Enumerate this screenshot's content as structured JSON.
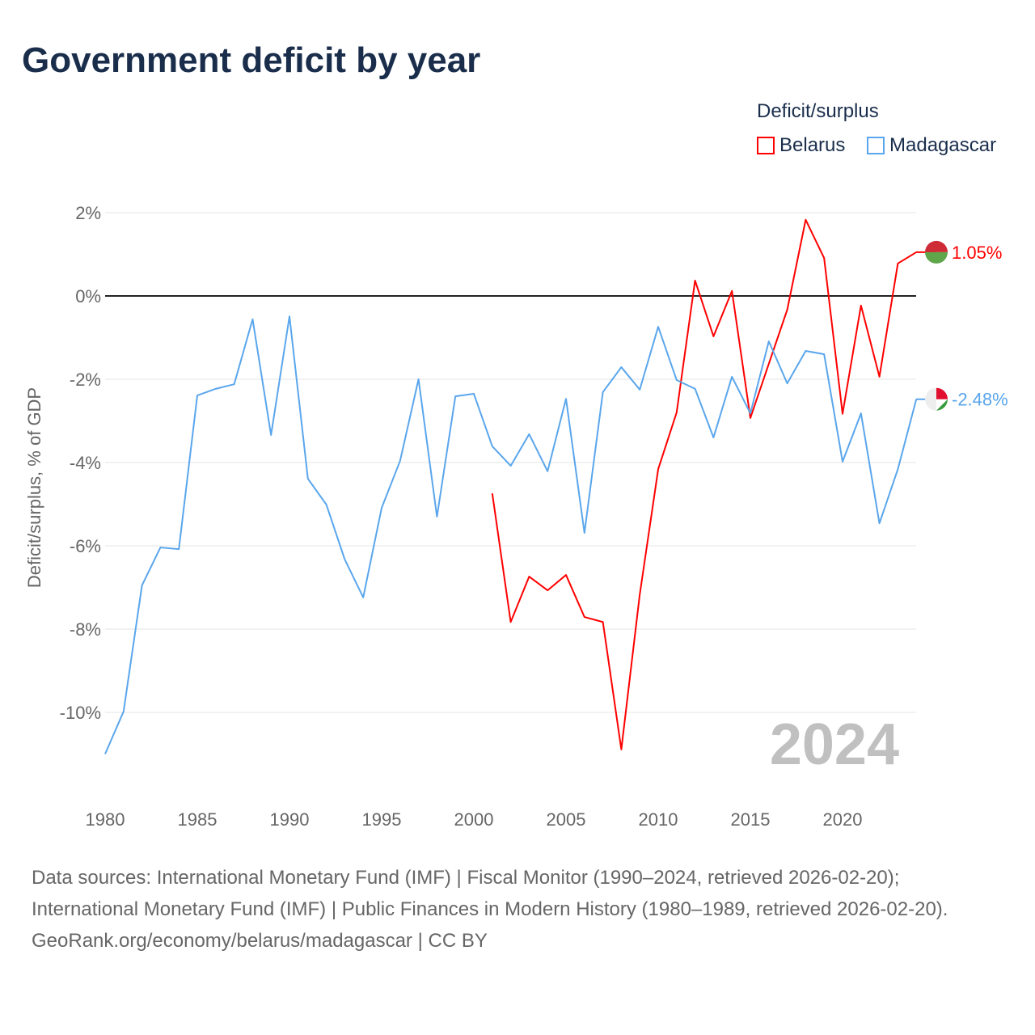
{
  "title": "Government deficit by year",
  "legend": {
    "title": "Deficit/surplus",
    "items": [
      {
        "label": "Belarus",
        "color": "#ff0000"
      },
      {
        "label": "Madagascar",
        "color": "#5aa6ec"
      }
    ]
  },
  "source": {
    "line1": "Data sources: International Monetary Fund (IMF) | Fiscal Monitor (1990–2024, retrieved 2026-02-20); International Monetary Fund (IMF) | Public Finances in Modern History (1980–1989, retrieved 2026-02-20).",
    "line2": "GeoRank.org/economy/belarus/madagascar | CC BY"
  },
  "chart_data": {
    "type": "line",
    "title": "Government deficit by year",
    "ylabel": "Deficit/surplus, % of GDP",
    "xlabel": "",
    "year_label": "2024",
    "xlim": [
      1980,
      2024
    ],
    "ylim": [
      -11.5,
      2.5
    ],
    "x_ticks": [
      1980,
      1985,
      1990,
      1995,
      2000,
      2005,
      2010,
      2015,
      2020
    ],
    "y_ticks": [
      2,
      0,
      -2,
      -4,
      -6,
      -8,
      -10
    ],
    "y_tick_labels": [
      "2%",
      "0%",
      "-2%",
      "-4%",
      "-6%",
      "-8%",
      "-10%"
    ],
    "grid": true,
    "legend_position": "top-right",
    "series": [
      {
        "name": "Belarus",
        "color": "#ff0000",
        "start_year": 2001,
        "end_label": "1.05%",
        "values": [
          -4.74,
          -7.83,
          -6.74,
          -7.07,
          -6.7,
          -7.71,
          -7.83,
          -10.89,
          -7.17,
          -4.16,
          -2.8,
          0.37,
          -0.97,
          0.12,
          -2.93,
          -1.63,
          -0.33,
          1.83,
          0.91,
          -2.83,
          -0.23,
          -1.94,
          0.78,
          1.05
        ]
      },
      {
        "name": "Madagascar",
        "color": "#5aa6ec",
        "start_year": 1980,
        "end_label": "-2.48%",
        "values": [
          -11.0,
          -9.98,
          -6.95,
          -6.04,
          -6.08,
          -2.39,
          -2.23,
          -2.12,
          -0.56,
          -3.34,
          -0.49,
          -4.39,
          -5.01,
          -6.33,
          -7.24,
          -5.09,
          -3.96,
          -2.0,
          -5.3,
          -2.41,
          -2.35,
          -3.61,
          -4.08,
          -3.32,
          -4.21,
          -2.47,
          -5.69,
          -2.31,
          -1.71,
          -2.25,
          -0.74,
          -2.02,
          -2.23,
          -3.4,
          -1.94,
          -2.82,
          -1.09,
          -2.1,
          -1.32,
          -1.4,
          -3.98,
          -2.82,
          -5.46,
          -4.16,
          -2.48
        ]
      }
    ]
  }
}
